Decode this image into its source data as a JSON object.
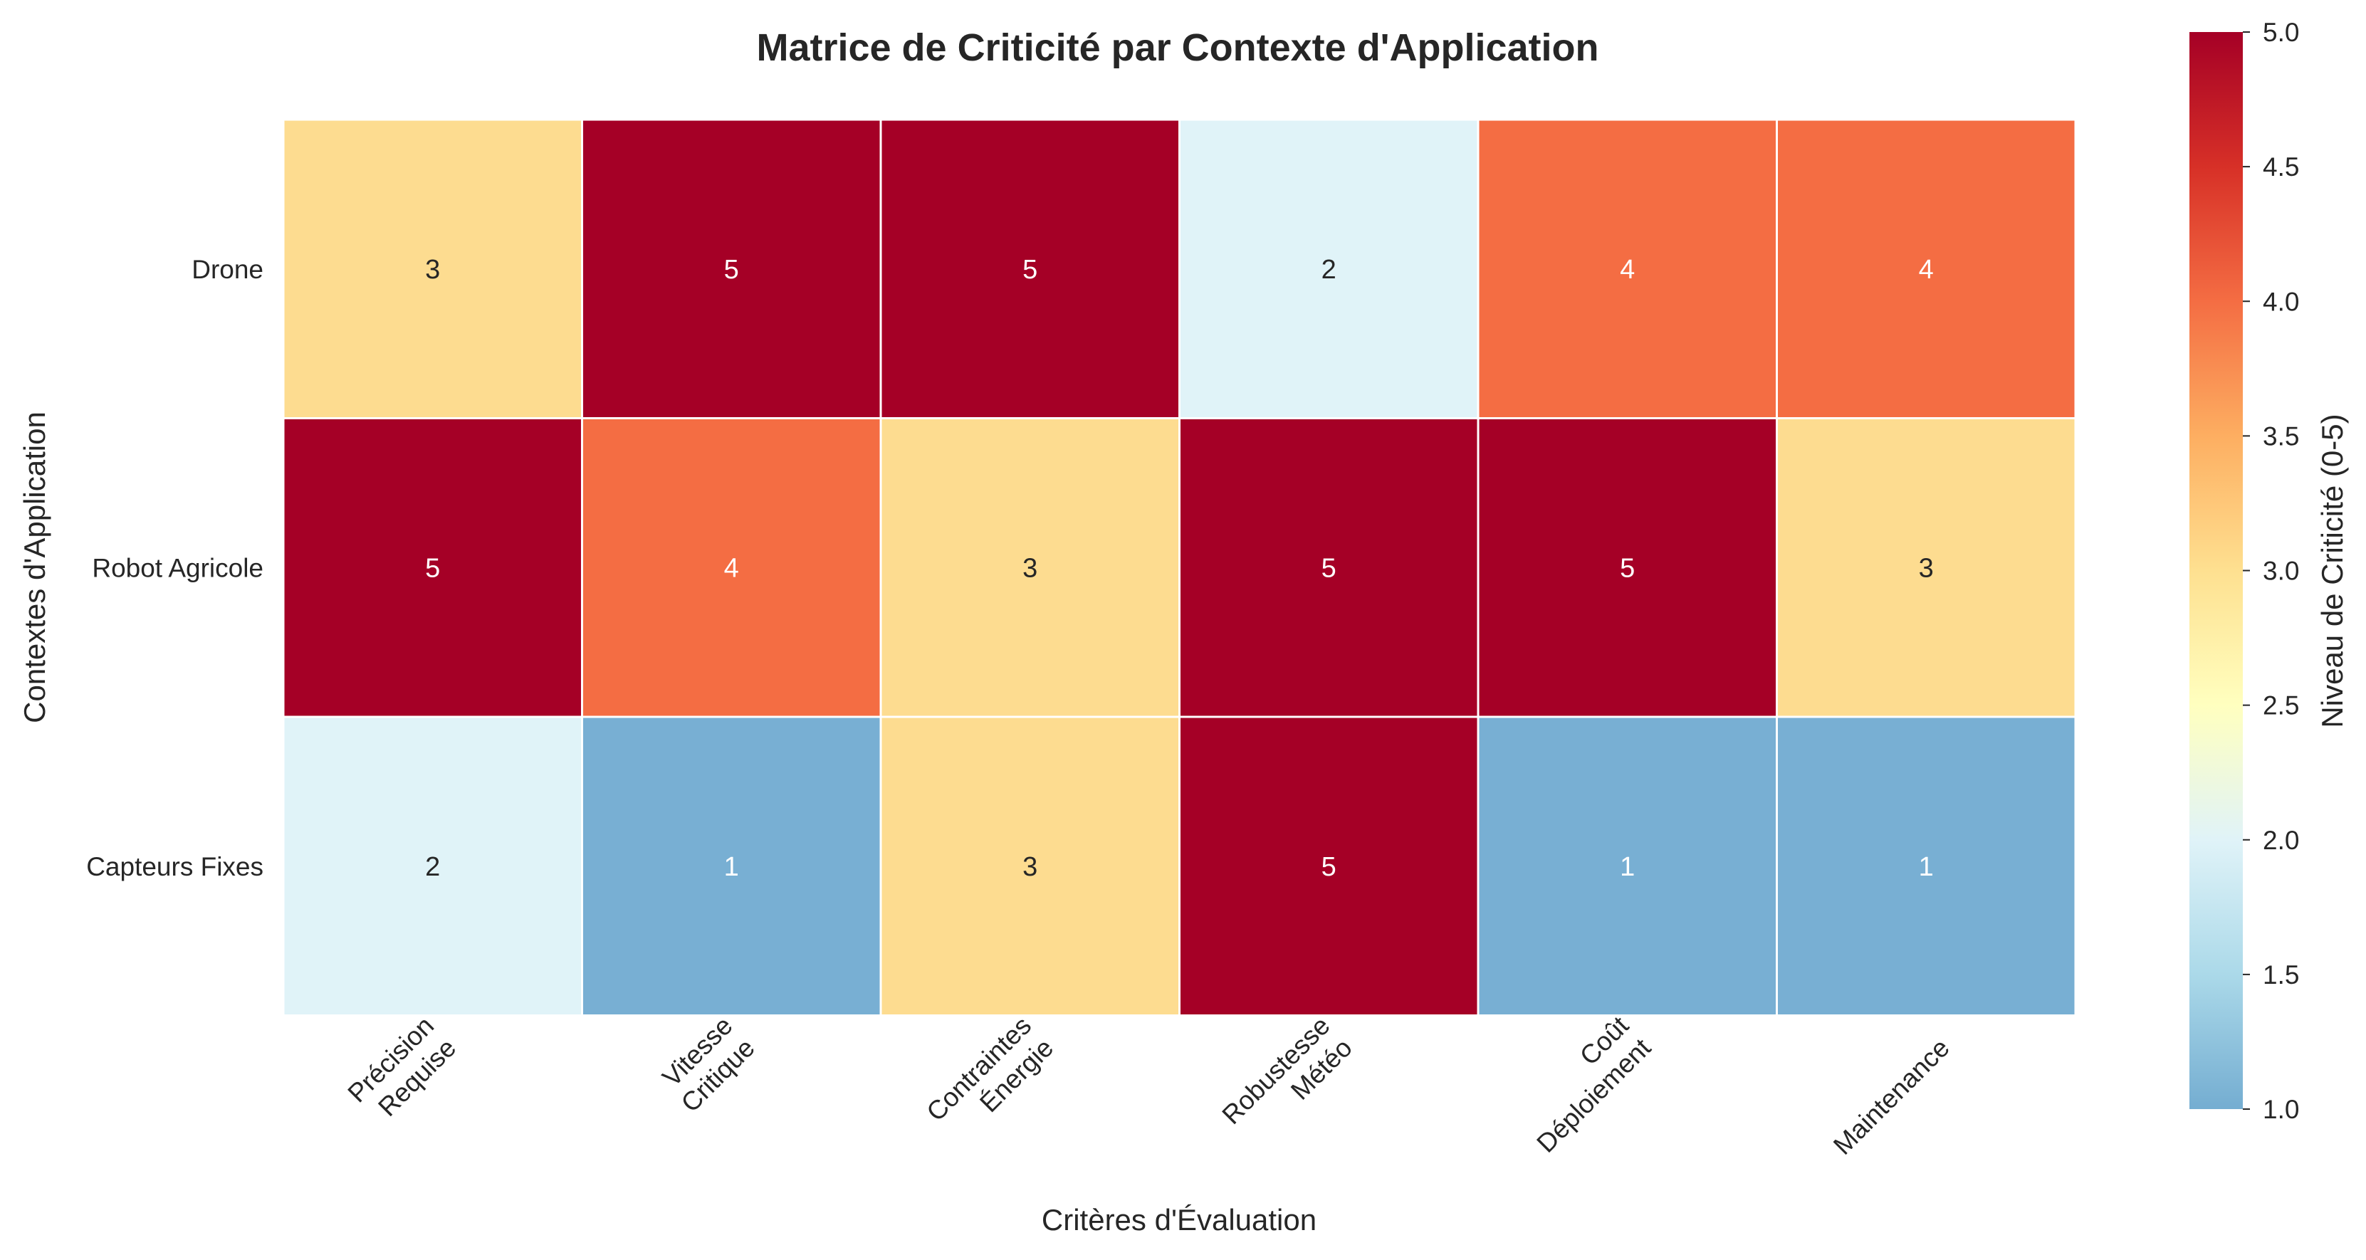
{
  "chart_data": {
    "type": "heatmap",
    "title": "Matrice de Criticité par Contexte d'Application",
    "xlabel": "Critères d'Évaluation",
    "ylabel": "Contextes d'Application",
    "categories_x": [
      [
        "Précision",
        "Requise"
      ],
      [
        "Vitesse",
        "Critique"
      ],
      [
        "Contraintes",
        "Énergie"
      ],
      [
        "Robustesse",
        "Météo"
      ],
      [
        "Coût",
        "Déploiement"
      ],
      [
        "Maintenance"
      ]
    ],
    "categories_y": [
      "Drone",
      "Robot Agricole",
      "Capteurs Fixes"
    ],
    "values": [
      [
        3,
        5,
        5,
        2,
        4,
        4
      ],
      [
        5,
        4,
        3,
        5,
        5,
        3
      ],
      [
        2,
        1,
        3,
        5,
        1,
        1
      ]
    ],
    "colorbar": {
      "label": "Niveau de Criticité (0-5)",
      "range": [
        1.0,
        5.0
      ],
      "ticks": [
        "1.0",
        "1.5",
        "2.0",
        "2.5",
        "3.0",
        "3.5",
        "4.0",
        "4.5",
        "5.0"
      ],
      "colormap": "RdYlBu_r"
    },
    "colors": {
      "1": "#78afd3",
      "2": "#e0f3f8",
      "3": "#fddc90",
      "4": "#f46d43",
      "5": "#a50026"
    },
    "annotations": true,
    "grid": false
  }
}
